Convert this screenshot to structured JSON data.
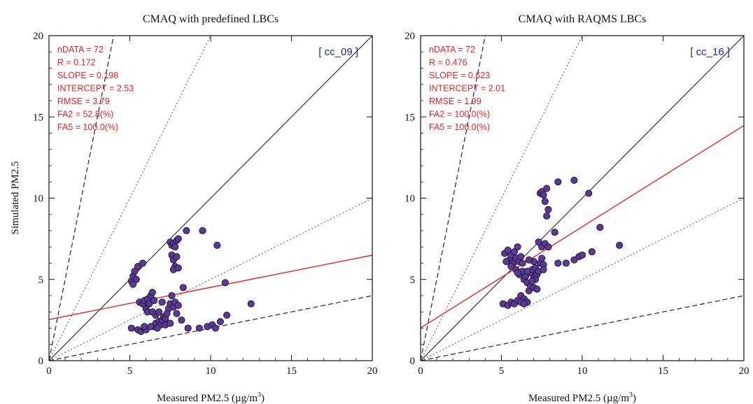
{
  "figure": {
    "ylabel": "Simulated PM2.5",
    "xlabel_main": "Measured PM2.5 (µg/m",
    "xlabel_sup": "3",
    "xlabel_close": ")"
  },
  "colors": {
    "points": "#5b3a96",
    "point_edge": "#1a1030",
    "regression": "#ee2222",
    "stats": "#ee2222",
    "tag": "#1a2a99",
    "one_to_one": "#333333",
    "fa2": "#777777",
    "fa5": "#333333"
  },
  "chart_data": [
    {
      "type": "scatter",
      "title": "CMAQ with predefined LBCs",
      "tag": "[ cc_09 ]",
      "xlim": [
        0,
        20
      ],
      "ylim": [
        0,
        20
      ],
      "xticks": [
        "0",
        "5",
        "10",
        "15",
        "20"
      ],
      "yticks": [
        "0",
        "5",
        "10",
        "15",
        "20"
      ],
      "stats": [
        "nDATA = 72",
        "R = 0.172",
        "SLOPE = 0.198",
        "INTERCEPT = 2.53",
        "RMSE = 3.79",
        "FA2 = 52.8(%)",
        "FA5 = 100.0(%)"
      ],
      "regression": {
        "slope": 0.198,
        "intercept": 2.53
      },
      "points": [
        [
          5.1,
          4.9
        ],
        [
          5.2,
          5.2
        ],
        [
          5.3,
          5.5
        ],
        [
          5.4,
          5.0
        ],
        [
          5.5,
          5.8
        ],
        [
          5.2,
          4.7
        ],
        [
          5.8,
          6.0
        ],
        [
          5.1,
          2.0
        ],
        [
          5.5,
          1.9
        ],
        [
          5.7,
          1.8
        ],
        [
          5.9,
          2.0
        ],
        [
          6.0,
          1.9
        ],
        [
          5.6,
          3.6
        ],
        [
          5.8,
          3.5
        ],
        [
          5.9,
          3.7
        ],
        [
          6.0,
          3.2
        ],
        [
          6.1,
          3.8
        ],
        [
          6.2,
          3.5
        ],
        [
          6.1,
          3.0
        ],
        [
          6.3,
          4.0
        ],
        [
          6.4,
          4.2
        ],
        [
          6.5,
          3.7
        ],
        [
          6.6,
          2.8
        ],
        [
          6.5,
          2.1
        ],
        [
          6.6,
          2.3
        ],
        [
          6.8,
          2.4
        ],
        [
          6.9,
          2.2
        ],
        [
          7.0,
          2.5
        ],
        [
          7.1,
          2.7
        ],
        [
          7.2,
          2.6
        ],
        [
          6.7,
          2.0
        ],
        [
          7.4,
          3.2
        ],
        [
          7.5,
          3.5
        ],
        [
          7.6,
          4.0
        ],
        [
          7.7,
          3.3
        ],
        [
          7.8,
          3.6
        ],
        [
          8.0,
          3.4
        ],
        [
          7.9,
          2.9
        ],
        [
          7.3,
          2.9
        ],
        [
          7.5,
          7.3
        ],
        [
          7.6,
          7.1
        ],
        [
          7.7,
          7.2
        ],
        [
          7.8,
          7.0
        ],
        [
          7.9,
          7.4
        ],
        [
          8.0,
          7.5
        ],
        [
          7.6,
          6.5
        ],
        [
          7.7,
          6.2
        ],
        [
          7.8,
          5.8
        ],
        [
          7.9,
          6.4
        ],
        [
          7.7,
          5.6
        ],
        [
          8.0,
          5.7
        ],
        [
          8.3,
          4.5
        ],
        [
          8.5,
          8.0
        ],
        [
          9.5,
          8.0
        ],
        [
          10.4,
          7.1
        ],
        [
          10.9,
          4.8
        ],
        [
          12.5,
          3.5
        ],
        [
          8.6,
          2.0
        ],
        [
          9.3,
          2.0
        ],
        [
          9.8,
          2.1
        ],
        [
          10.1,
          2.2
        ],
        [
          10.3,
          2.0
        ],
        [
          10.6,
          2.4
        ],
        [
          11.0,
          2.8
        ],
        [
          7.2,
          2.2
        ],
        [
          6.8,
          3.0
        ],
        [
          6.4,
          3.0
        ],
        [
          5.9,
          2.1
        ],
        [
          7.5,
          2.3
        ],
        [
          8.2,
          2.5
        ],
        [
          7.0,
          3.6
        ],
        [
          6.3,
          2.1
        ]
      ]
    },
    {
      "type": "scatter",
      "title": "CMAQ with RAQMS LBCs",
      "tag": "[ cc_16 ]",
      "xlim": [
        0,
        20
      ],
      "ylim": [
        0,
        20
      ],
      "xticks": [
        "0",
        "5",
        "10",
        "15",
        "20"
      ],
      "yticks": [
        "0",
        "5",
        "10",
        "15",
        "20"
      ],
      "stats": [
        "nDATA = 72",
        "R = 0.476",
        "SLOPE = 0.623",
        "INTERCEPT = 2.01",
        "RMSE = 1.99",
        "FA2 = 100.0(%)",
        "FA5 = 100.0(%)"
      ],
      "regression": {
        "slope": 0.623,
        "intercept": 2.01
      },
      "points": [
        [
          7.4,
          10.3
        ],
        [
          7.5,
          10.4
        ],
        [
          7.6,
          10.2
        ],
        [
          7.8,
          10.6
        ],
        [
          7.7,
          9.8
        ],
        [
          7.9,
          9.3
        ],
        [
          7.8,
          8.9
        ],
        [
          8.5,
          11.0
        ],
        [
          9.5,
          11.1
        ],
        [
          10.4,
          10.3
        ],
        [
          5.2,
          6.6
        ],
        [
          5.4,
          6.8
        ],
        [
          5.5,
          6.2
        ],
        [
          5.6,
          6.5
        ],
        [
          5.7,
          6.0
        ],
        [
          5.8,
          6.7
        ],
        [
          5.9,
          6.3
        ],
        [
          6.0,
          7.0
        ],
        [
          6.1,
          6.1
        ],
        [
          6.2,
          6.4
        ],
        [
          5.3,
          6.1
        ],
        [
          5.6,
          5.8
        ],
        [
          5.9,
          5.6
        ],
        [
          6.1,
          5.3
        ],
        [
          6.3,
          5.5
        ],
        [
          6.4,
          5.0
        ],
        [
          6.5,
          5.2
        ],
        [
          6.6,
          4.8
        ],
        [
          6.8,
          5.4
        ],
        [
          6.9,
          5.6
        ],
        [
          7.0,
          5.1
        ],
        [
          7.1,
          5.7
        ],
        [
          7.2,
          5.3
        ],
        [
          7.3,
          5.5
        ],
        [
          7.4,
          6.0
        ],
        [
          7.5,
          6.3
        ],
        [
          7.6,
          5.9
        ],
        [
          7.1,
          5.0
        ],
        [
          6.2,
          4.0
        ],
        [
          6.4,
          3.8
        ],
        [
          6.6,
          3.6
        ],
        [
          6.7,
          4.3
        ],
        [
          6.8,
          4.6
        ],
        [
          6.9,
          4.9
        ],
        [
          7.0,
          4.5
        ],
        [
          7.2,
          4.4
        ],
        [
          5.1,
          3.5
        ],
        [
          5.4,
          3.4
        ],
        [
          5.6,
          3.6
        ],
        [
          5.8,
          3.5
        ],
        [
          6.0,
          3.7
        ],
        [
          6.2,
          3.6
        ],
        [
          6.4,
          3.5
        ],
        [
          7.3,
          7.3
        ],
        [
          7.5,
          7.0
        ],
        [
          7.7,
          7.2
        ],
        [
          7.9,
          7.0
        ],
        [
          8.3,
          7.9
        ],
        [
          8.5,
          6.0
        ],
        [
          9.0,
          6.0
        ],
        [
          9.5,
          6.2
        ],
        [
          9.8,
          6.4
        ],
        [
          10.0,
          6.5
        ],
        [
          10.6,
          6.7
        ],
        [
          11.1,
          8.2
        ],
        [
          12.3,
          7.1
        ],
        [
          7.0,
          6.1
        ],
        [
          6.6,
          5.5
        ],
        [
          6.0,
          5.4
        ],
        [
          6.3,
          6.0
        ],
        [
          7.6,
          5.6
        ],
        [
          6.7,
          6.2
        ]
      ]
    }
  ]
}
